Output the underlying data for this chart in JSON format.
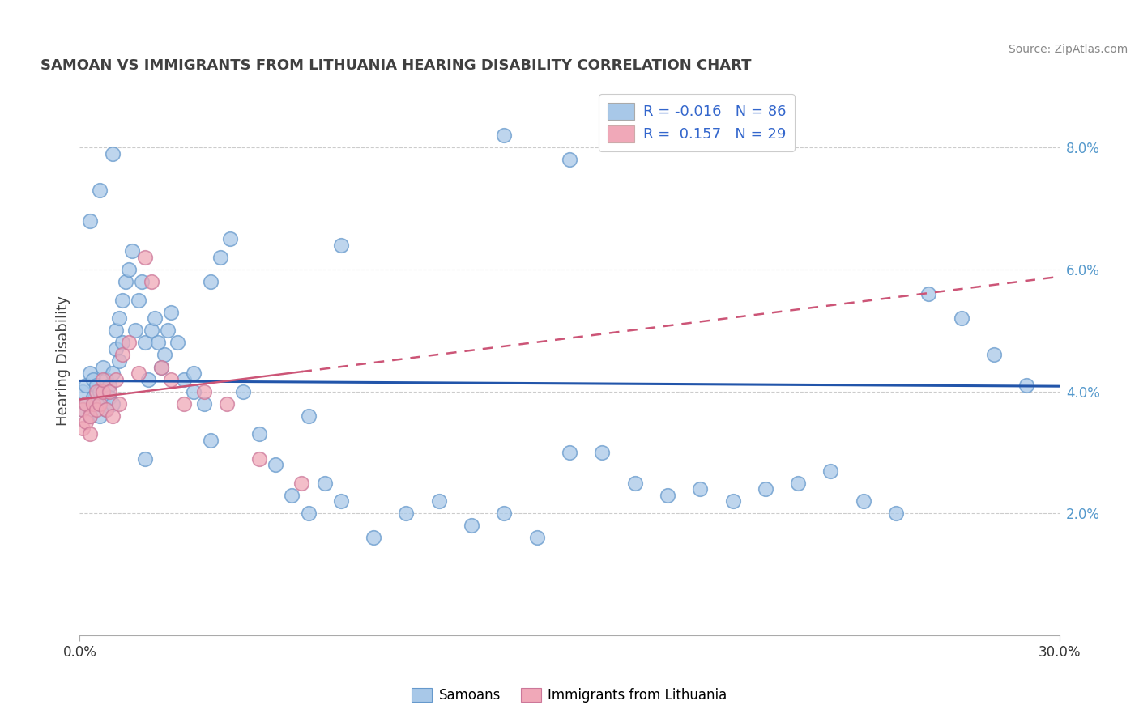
{
  "title": "SAMOAN VS IMMIGRANTS FROM LITHUANIA HEARING DISABILITY CORRELATION CHART",
  "source": "Source: ZipAtlas.com",
  "ylabel": "Hearing Disability",
  "xmin": 0.0,
  "xmax": 0.3,
  "ymin": 0.0,
  "ymax": 0.09,
  "yticks": [
    0.02,
    0.04,
    0.06,
    0.08
  ],
  "ytick_labels": [
    "2.0%",
    "4.0%",
    "6.0%",
    "8.0%"
  ],
  "blue_color": "#a8c8e8",
  "pink_color": "#f0a8b8",
  "blue_line_color": "#2255aa",
  "pink_line_color": "#cc5577",
  "blue_r": -0.016,
  "blue_n": 86,
  "pink_r": 0.157,
  "pink_n": 29,
  "samoans_x": [
    0.001,
    0.001,
    0.002,
    0.002,
    0.003,
    0.003,
    0.004,
    0.004,
    0.005,
    0.005,
    0.006,
    0.006,
    0.007,
    0.007,
    0.008,
    0.008,
    0.009,
    0.009,
    0.01,
    0.01,
    0.011,
    0.011,
    0.012,
    0.012,
    0.013,
    0.013,
    0.014,
    0.015,
    0.016,
    0.017,
    0.018,
    0.019,
    0.02,
    0.021,
    0.022,
    0.023,
    0.024,
    0.025,
    0.026,
    0.027,
    0.028,
    0.03,
    0.032,
    0.035,
    0.038,
    0.04,
    0.043,
    0.046,
    0.05,
    0.055,
    0.06,
    0.065,
    0.07,
    0.075,
    0.08,
    0.09,
    0.1,
    0.11,
    0.12,
    0.13,
    0.14,
    0.15,
    0.16,
    0.17,
    0.18,
    0.19,
    0.2,
    0.21,
    0.22,
    0.23,
    0.24,
    0.25,
    0.26,
    0.27,
    0.28,
    0.29,
    0.15,
    0.08,
    0.04,
    0.02,
    0.01,
    0.006,
    0.003,
    0.13,
    0.07,
    0.035
  ],
  "samoans_y": [
    0.04,
    0.037,
    0.041,
    0.038,
    0.043,
    0.036,
    0.039,
    0.042,
    0.038,
    0.041,
    0.04,
    0.036,
    0.044,
    0.038,
    0.042,
    0.037,
    0.041,
    0.039,
    0.043,
    0.038,
    0.05,
    0.047,
    0.052,
    0.045,
    0.055,
    0.048,
    0.058,
    0.06,
    0.063,
    0.05,
    0.055,
    0.058,
    0.048,
    0.042,
    0.05,
    0.052,
    0.048,
    0.044,
    0.046,
    0.05,
    0.053,
    0.048,
    0.042,
    0.04,
    0.038,
    0.058,
    0.062,
    0.065,
    0.04,
    0.033,
    0.028,
    0.023,
    0.02,
    0.025,
    0.022,
    0.016,
    0.02,
    0.022,
    0.018,
    0.02,
    0.016,
    0.03,
    0.03,
    0.025,
    0.023,
    0.024,
    0.022,
    0.024,
    0.025,
    0.027,
    0.022,
    0.02,
    0.056,
    0.052,
    0.046,
    0.041,
    0.078,
    0.064,
    0.032,
    0.029,
    0.079,
    0.073,
    0.068,
    0.082,
    0.036,
    0.043
  ],
  "lithuania_x": [
    0.001,
    0.001,
    0.002,
    0.002,
    0.003,
    0.003,
    0.004,
    0.005,
    0.005,
    0.006,
    0.007,
    0.007,
    0.008,
    0.009,
    0.01,
    0.011,
    0.012,
    0.013,
    0.015,
    0.018,
    0.02,
    0.022,
    0.025,
    0.028,
    0.032,
    0.038,
    0.045,
    0.055,
    0.068
  ],
  "lithuania_y": [
    0.037,
    0.034,
    0.038,
    0.035,
    0.033,
    0.036,
    0.038,
    0.037,
    0.04,
    0.038,
    0.04,
    0.042,
    0.037,
    0.04,
    0.036,
    0.042,
    0.038,
    0.046,
    0.048,
    0.043,
    0.062,
    0.058,
    0.044,
    0.042,
    0.038,
    0.04,
    0.038,
    0.029,
    0.025
  ]
}
